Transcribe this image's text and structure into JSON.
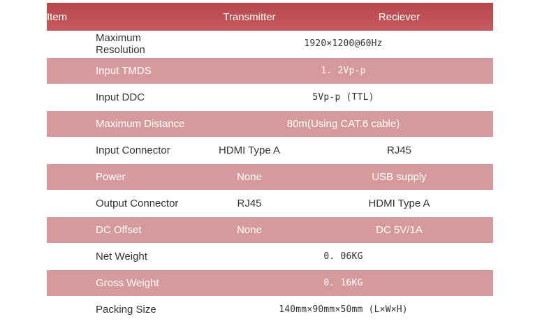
{
  "header": {
    "item": "Item",
    "transmitter": "Transmitter",
    "receiver": "Reciever"
  },
  "rows": [
    {
      "label": "Maximum Resolution",
      "value": "1920×1200@60Hz"
    },
    {
      "label": "Input TMDS",
      "value": "1. 2Vp-p"
    },
    {
      "label": "Input DDC",
      "value": "5Vp-p (TTL)"
    },
    {
      "label": "Maximum Distance",
      "value": "80m(Using CAT.6 cable)"
    },
    {
      "label": "Input Connector",
      "transmitter": "HDMI Type A",
      "receiver": "RJ45"
    },
    {
      "label": "Power",
      "transmitter": "None",
      "receiver": "USB supply"
    },
    {
      "label": "Output Connector",
      "transmitter": "RJ45",
      "receiver": "HDMI Type A"
    },
    {
      "label": "DC Offset",
      "transmitter": "None",
      "receiver": "DC 5V/1A"
    },
    {
      "label": "Net Weight",
      "value": "0. 06KG"
    },
    {
      "label": "Gross Weight",
      "value": "0. 16KG"
    },
    {
      "label": "Packing Size",
      "value": "140mm×90mm×50mm (L×W×H)"
    }
  ]
}
